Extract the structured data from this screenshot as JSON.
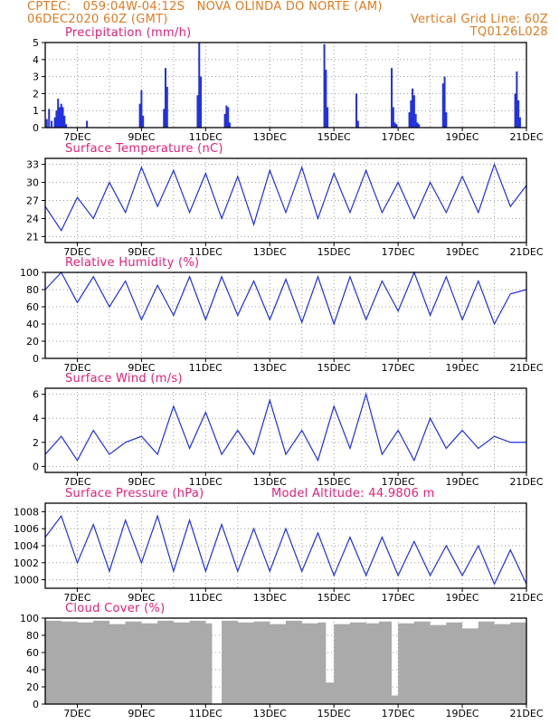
{
  "header": {
    "line1_left": "CPTEC:   059:04W-04:12S   NOVA OLINDA DO NORTE (AM)",
    "line2_left": "06DEC2020 60Z (GMT)",
    "line2_right": "Vertical Grid Line: 60Z",
    "line3_right": "TQ0126L028",
    "model_altitude": "Model Altitude: 44.9806 m"
  },
  "x_axis": {
    "day_start": 6,
    "day_end": 21,
    "tick_days": [
      7,
      9,
      11,
      13,
      15,
      17,
      19,
      21
    ],
    "tick_labels": [
      "7DEC",
      "9DEC",
      "11DEC",
      "13DEC",
      "15DEC",
      "17DEC",
      "19DEC",
      "21DEC"
    ]
  },
  "colors": {
    "header": "#e07b20",
    "title": "#e0207a",
    "series": "#2030e0",
    "cloud": "#aaaaaa",
    "grid": "#999999"
  },
  "chart_data": [
    {
      "type": "bar",
      "title": "Precipitation (mm/h)",
      "ylim": [
        0,
        5
      ],
      "yticks": [
        0,
        1,
        2,
        3,
        4,
        5
      ],
      "x": [
        6.05,
        6.12,
        6.2,
        6.3,
        6.35,
        6.4,
        6.45,
        6.5,
        6.55,
        6.6,
        6.65,
        7.3,
        8.95,
        9.0,
        9.05,
        9.7,
        9.75,
        9.8,
        10.75,
        10.8,
        10.85,
        11.6,
        11.65,
        11.7,
        11.75,
        14.7,
        14.75,
        14.8,
        15.7,
        15.75,
        16.8,
        16.85,
        16.9,
        16.95,
        17.35,
        17.4,
        17.45,
        17.5,
        17.55,
        17.6,
        17.65,
        18.4,
        18.45,
        18.5,
        20.65,
        20.7,
        20.75,
        20.8
      ],
      "values": [
        0.5,
        1.1,
        0.4,
        0.6,
        1.0,
        1.7,
        1.2,
        1.4,
        1.2,
        0.7,
        0.2,
        0.4,
        1.4,
        2.2,
        0.7,
        1.1,
        3.5,
        2.4,
        1.9,
        5.0,
        3.0,
        0.8,
        1.3,
        1.2,
        0.3,
        4.9,
        3.4,
        1.2,
        2.0,
        0.4,
        3.5,
        1.2,
        0.3,
        0.2,
        0.9,
        1.6,
        2.3,
        1.9,
        0.8,
        0.3,
        0.2,
        2.6,
        3.0,
        0.9,
        2.0,
        3.3,
        1.6,
        0.6
      ]
    },
    {
      "type": "line",
      "title": "Surface Temperature (nC)",
      "ylim": [
        20,
        34
      ],
      "yticks": [
        21,
        24,
        27,
        30,
        33
      ],
      "x": [
        6.0,
        6.5,
        7.0,
        7.5,
        8.0,
        8.5,
        9.0,
        9.5,
        10.0,
        10.5,
        11.0,
        11.5,
        12.0,
        12.5,
        13.0,
        13.5,
        14.0,
        14.5,
        15.0,
        15.5,
        16.0,
        16.5,
        17.0,
        17.5,
        18.0,
        18.5,
        19.0,
        19.5,
        20.0,
        20.5,
        21.0
      ],
      "values": [
        26,
        22,
        27.5,
        24,
        30,
        25,
        32.5,
        26,
        32,
        25,
        31.5,
        24,
        31,
        23,
        32,
        25,
        32.5,
        24,
        31.5,
        25,
        32,
        25,
        30,
        24,
        30,
        25,
        31,
        25,
        33,
        26,
        29.5
      ]
    },
    {
      "type": "line",
      "title": "Relative Humidity (%)",
      "ylim": [
        0,
        100
      ],
      "yticks": [
        0,
        20,
        40,
        60,
        80,
        100
      ],
      "x": [
        6.0,
        6.5,
        7.0,
        7.5,
        8.0,
        8.5,
        9.0,
        9.5,
        10.0,
        10.5,
        11.0,
        11.5,
        12.0,
        12.5,
        13.0,
        13.5,
        14.0,
        14.5,
        15.0,
        15.5,
        16.0,
        16.5,
        17.0,
        17.5,
        18.0,
        18.5,
        19.0,
        19.5,
        20.0,
        20.5,
        21.0
      ],
      "values": [
        80,
        100,
        65,
        95,
        60,
        90,
        45,
        85,
        50,
        95,
        45,
        95,
        50,
        90,
        45,
        92,
        42,
        95,
        40,
        95,
        45,
        90,
        55,
        100,
        50,
        95,
        45,
        90,
        40,
        75,
        80
      ]
    },
    {
      "type": "line",
      "title": "Surface Wind (m/s)",
      "ylim": [
        -0.5,
        6.5
      ],
      "yticks": [
        0,
        2,
        4,
        6
      ],
      "x": [
        6.0,
        6.5,
        7.0,
        7.5,
        8.0,
        8.5,
        9.0,
        9.5,
        10.0,
        10.5,
        11.0,
        11.5,
        12.0,
        12.5,
        13.0,
        13.5,
        14.0,
        14.5,
        15.0,
        15.5,
        16.0,
        16.5,
        17.0,
        17.5,
        18.0,
        18.5,
        19.0,
        19.5,
        20.0,
        20.5,
        21.0
      ],
      "values": [
        1.0,
        2.5,
        0.5,
        3.0,
        1.0,
        2.0,
        2.5,
        1.0,
        5.0,
        1.5,
        4.5,
        1.0,
        3.0,
        1.0,
        5.5,
        1.0,
        3.0,
        0.5,
        5.0,
        1.5,
        6.0,
        1.0,
        3.0,
        0.5,
        4.0,
        1.5,
        3.0,
        1.5,
        2.5,
        2.0,
        2.0
      ]
    },
    {
      "type": "line",
      "title": "Surface Pressure (hPa)",
      "ylim": [
        999,
        1009
      ],
      "yticks": [
        1000,
        1002,
        1004,
        1006,
        1008
      ],
      "x": [
        6.0,
        6.5,
        7.0,
        7.5,
        8.0,
        8.5,
        9.0,
        9.5,
        10.0,
        10.5,
        11.0,
        11.5,
        12.0,
        12.5,
        13.0,
        13.5,
        14.0,
        14.5,
        15.0,
        15.5,
        16.0,
        16.5,
        17.0,
        17.5,
        18.0,
        18.5,
        19.0,
        19.5,
        20.0,
        20.5,
        21.0
      ],
      "values": [
        1005,
        1007.5,
        1002,
        1006.5,
        1001,
        1007,
        1002,
        1007.5,
        1001,
        1007,
        1001,
        1006.5,
        1001,
        1006,
        1001,
        1006,
        1001,
        1005.5,
        1000.5,
        1005,
        1000.5,
        1005,
        1000.5,
        1004.5,
        1000.5,
        1004,
        1000.5,
        1004,
        999.5,
        1003.5,
        999.5
      ]
    },
    {
      "type": "bar",
      "title": "Cloud Cover (%)",
      "ylim": [
        0,
        100
      ],
      "yticks": [
        0,
        20,
        40,
        60,
        80,
        100
      ],
      "x": [
        6.0,
        6.5,
        7.0,
        7.5,
        8.0,
        8.5,
        9.0,
        9.5,
        10.0,
        10.5,
        11.0,
        11.2,
        11.5,
        12.0,
        12.5,
        13.0,
        13.5,
        14.0,
        14.5,
        14.75,
        15.0,
        15.5,
        16.0,
        16.4,
        16.8,
        17.0,
        17.5,
        18.0,
        18.5,
        19.0,
        19.5,
        20.0,
        20.5,
        21.0
      ],
      "values": [
        97,
        96,
        95,
        97,
        93,
        96,
        94,
        97,
        95,
        97,
        94,
        0,
        97,
        95,
        96,
        93,
        97,
        94,
        95,
        25,
        93,
        95,
        94,
        96,
        10,
        94,
        96,
        92,
        95,
        88,
        96,
        93,
        95,
        96
      ]
    }
  ]
}
